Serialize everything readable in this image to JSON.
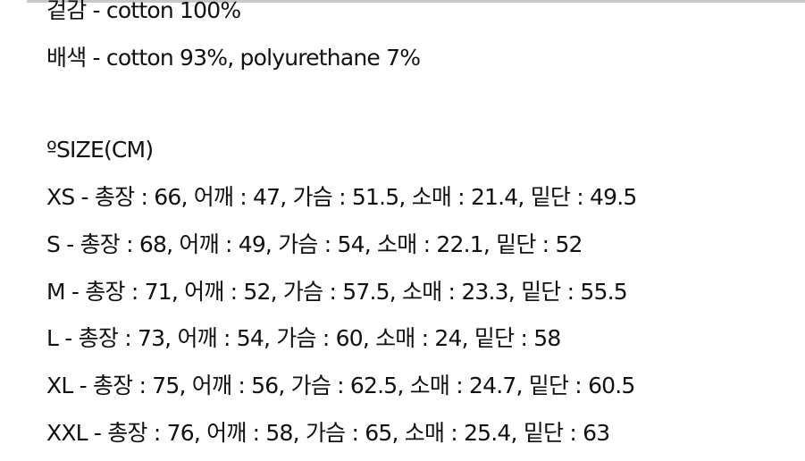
{
  "materials": [
    "겉감 - cotton 100%",
    "배색 - cotton 93%, polyurethane 7%"
  ],
  "size_heading": "ºSIZE(CM)",
  "sizes": [
    "XS - 총장 : 66, 어깨 : 47, 가슴 : 51.5, 소매 : 21.4, 밑단 : 49.5",
    "S - 총장 : 68, 어깨 : 49, 가슴 : 54, 소매 : 22.1, 밑단 : 52",
    "M - 총장 : 71, 어깨 : 52, 가슴 : 57.5, 소매 : 23.3, 밑단 : 55.5",
    "L - 총장 : 73, 어깨 : 54, 가슴 : 60, 소매 : 24, 밑단 : 58",
    "XL - 총장 : 75, 어깨 : 56, 가슴 : 62.5, 소매 : 24.7, 밑단 : 60.5",
    "XXL - 총장 : 76, 어깨 : 58, 가슴 : 65, 소매 : 25.4, 밑단 : 63"
  ]
}
